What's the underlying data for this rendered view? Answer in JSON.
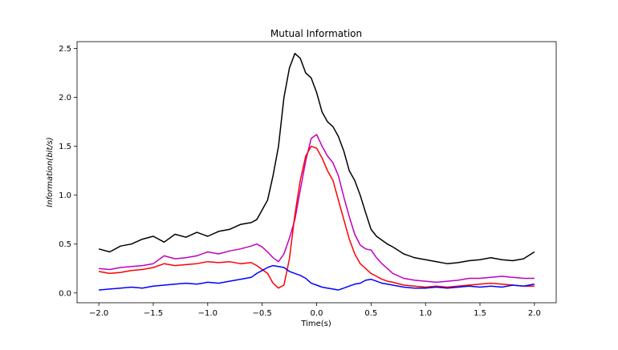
{
  "chart_data": {
    "type": "line",
    "title": "Mutual Information",
    "xlabel": "Time(s)",
    "ylabel": "Information(bit/s)",
    "xlim": [
      -2.2,
      2.2
    ],
    "ylim": [
      -0.1,
      2.57
    ],
    "xticks": [
      -2.0,
      -1.5,
      -1.0,
      -0.5,
      0.0,
      0.5,
      1.0,
      1.5,
      2.0
    ],
    "xtick_labels": [
      "−2.0",
      "−1.5",
      "−1.0",
      "−0.5",
      "0.0",
      "0.5",
      "1.0",
      "1.5",
      "2.0"
    ],
    "yticks": [
      0.0,
      0.5,
      1.0,
      1.5,
      2.0,
      2.5
    ],
    "ytick_labels": [
      "0.0",
      "0.5",
      "1.0",
      "1.5",
      "2.0",
      "2.5"
    ],
    "grid": false,
    "legend": "none",
    "x": [
      -2.0,
      -1.9,
      -1.8,
      -1.7,
      -1.6,
      -1.5,
      -1.4,
      -1.3,
      -1.2,
      -1.1,
      -1.0,
      -0.9,
      -0.8,
      -0.7,
      -0.6,
      -0.55,
      -0.5,
      -0.45,
      -0.4,
      -0.35,
      -0.3,
      -0.25,
      -0.2,
      -0.15,
      -0.1,
      -0.05,
      0.0,
      0.05,
      0.1,
      0.15,
      0.2,
      0.25,
      0.3,
      0.35,
      0.4,
      0.45,
      0.5,
      0.55,
      0.6,
      0.65,
      0.7,
      0.8,
      0.9,
      1.0,
      1.1,
      1.2,
      1.3,
      1.4,
      1.5,
      1.6,
      1.7,
      1.8,
      1.9,
      2.0
    ],
    "series": [
      {
        "color": "#000000",
        "values": [
          0.45,
          0.42,
          0.48,
          0.5,
          0.55,
          0.58,
          0.52,
          0.6,
          0.57,
          0.62,
          0.58,
          0.63,
          0.65,
          0.7,
          0.72,
          0.75,
          0.85,
          0.95,
          1.2,
          1.5,
          2.0,
          2.3,
          2.45,
          2.4,
          2.25,
          2.2,
          2.05,
          1.85,
          1.75,
          1.7,
          1.6,
          1.45,
          1.25,
          1.15,
          1.0,
          0.82,
          0.65,
          0.58,
          0.54,
          0.5,
          0.47,
          0.4,
          0.36,
          0.34,
          0.32,
          0.3,
          0.31,
          0.33,
          0.34,
          0.36,
          0.34,
          0.33,
          0.35,
          0.42
        ]
      },
      {
        "color": "#bf00bf",
        "values": [
          0.25,
          0.24,
          0.26,
          0.27,
          0.28,
          0.3,
          0.38,
          0.35,
          0.36,
          0.38,
          0.42,
          0.4,
          0.43,
          0.45,
          0.48,
          0.5,
          0.47,
          0.42,
          0.36,
          0.32,
          0.4,
          0.56,
          0.75,
          1.05,
          1.35,
          1.58,
          1.62,
          1.5,
          1.4,
          1.33,
          1.2,
          0.98,
          0.78,
          0.6,
          0.49,
          0.45,
          0.44,
          0.36,
          0.3,
          0.25,
          0.2,
          0.15,
          0.13,
          0.12,
          0.11,
          0.12,
          0.13,
          0.15,
          0.15,
          0.16,
          0.17,
          0.16,
          0.15,
          0.15
        ]
      },
      {
        "color": "#ff0000",
        "values": [
          0.22,
          0.2,
          0.21,
          0.23,
          0.24,
          0.26,
          0.3,
          0.28,
          0.29,
          0.3,
          0.32,
          0.31,
          0.32,
          0.3,
          0.31,
          0.28,
          0.24,
          0.2,
          0.1,
          0.05,
          0.08,
          0.35,
          0.8,
          1.15,
          1.4,
          1.5,
          1.48,
          1.38,
          1.25,
          1.15,
          0.95,
          0.75,
          0.55,
          0.4,
          0.3,
          0.25,
          0.2,
          0.17,
          0.14,
          0.12,
          0.11,
          0.08,
          0.07,
          0.06,
          0.07,
          0.06,
          0.07,
          0.08,
          0.09,
          0.1,
          0.09,
          0.08,
          0.07,
          0.07
        ]
      },
      {
        "color": "#0000ff",
        "values": [
          0.03,
          0.04,
          0.05,
          0.06,
          0.05,
          0.07,
          0.08,
          0.09,
          0.1,
          0.09,
          0.11,
          0.1,
          0.12,
          0.14,
          0.16,
          0.2,
          0.23,
          0.26,
          0.28,
          0.27,
          0.26,
          0.22,
          0.2,
          0.18,
          0.15,
          0.1,
          0.08,
          0.06,
          0.05,
          0.04,
          0.03,
          0.05,
          0.07,
          0.09,
          0.1,
          0.13,
          0.14,
          0.12,
          0.1,
          0.09,
          0.08,
          0.06,
          0.05,
          0.05,
          0.06,
          0.05,
          0.06,
          0.07,
          0.06,
          0.07,
          0.06,
          0.08,
          0.07,
          0.09
        ]
      }
    ]
  }
}
